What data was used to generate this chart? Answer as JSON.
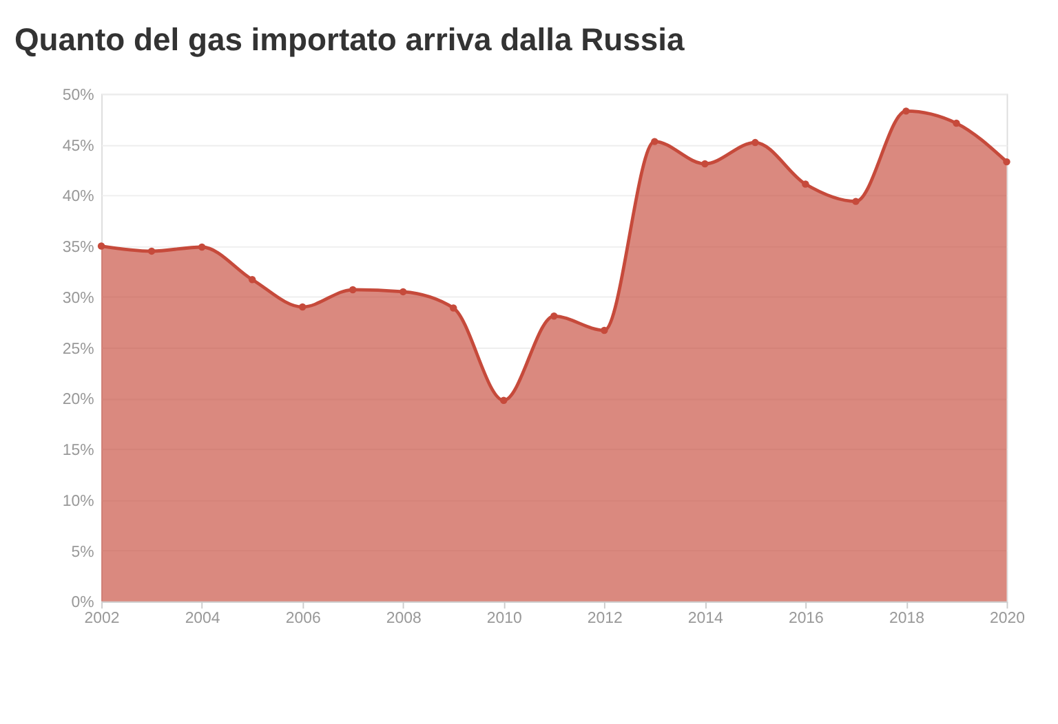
{
  "chart_data": {
    "type": "area",
    "title": "Quanto del gas importato arriva dalla Russia",
    "x": [
      2002,
      2003,
      2004,
      2005,
      2006,
      2007,
      2008,
      2009,
      2010,
      2011,
      2012,
      2013,
      2014,
      2015,
      2016,
      2017,
      2018,
      2019,
      2020
    ],
    "series": [
      {
        "color": "#c64a3b",
        "values": [
          35.0,
          34.5,
          34.9,
          31.7,
          29.0,
          30.7,
          30.5,
          28.9,
          19.8,
          28.1,
          26.7,
          45.3,
          43.1,
          45.2,
          41.1,
          39.4,
          48.3,
          47.1,
          43.3
        ]
      }
    ],
    "xlim": [
      2002,
      2020
    ],
    "xticks": [
      2002,
      2004,
      2006,
      2008,
      2010,
      2012,
      2014,
      2016,
      2018,
      2020
    ],
    "ylim": [
      0,
      50
    ],
    "yticks": [
      {
        "value": 0,
        "label": "0%"
      },
      {
        "value": 5,
        "label": "5%"
      },
      {
        "value": 10,
        "label": "10%"
      },
      {
        "value": 15,
        "label": "15%"
      },
      {
        "value": 20,
        "label": "20%"
      },
      {
        "value": 25,
        "label": "25%"
      },
      {
        "value": 30,
        "label": "30%"
      },
      {
        "value": 35,
        "label": "35%"
      },
      {
        "value": 40,
        "label": "40%"
      },
      {
        "value": 45,
        "label": "45%"
      },
      {
        "value": 50,
        "label": "50%"
      }
    ],
    "grid": "y",
    "marker": "circle",
    "line_style": "solid"
  }
}
